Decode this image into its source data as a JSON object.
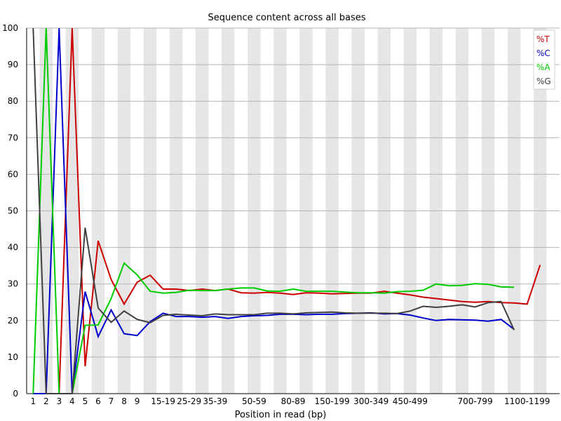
{
  "chart_data": {
    "type": "line",
    "title": "Sequence content across all bases",
    "xlabel": "Position in read (bp)",
    "ylabel": "",
    "ylim": [
      0,
      100
    ],
    "yticks": [
      0,
      10,
      20,
      30,
      40,
      50,
      60,
      70,
      80,
      90,
      100
    ],
    "grid": true,
    "legend_position": "top-right",
    "categories": [
      "1",
      "2",
      "3",
      "4",
      "5",
      "6",
      "7",
      "8",
      "9",
      "10-14",
      "15-19",
      "20-24",
      "25-29",
      "30-34",
      "35-39",
      "40-44",
      "45-49",
      "50-59",
      "60-69",
      "70-79",
      "80-89",
      "90-99",
      "100-149",
      "150-199",
      "200-249",
      "250-299",
      "300-349",
      "350-399",
      "400-449",
      "450-499",
      "500-549",
      "550-599",
      "600-649",
      "650-699",
      "700-799",
      "800-899",
      "900-999",
      "1000-1099",
      "1100-1199",
      "1200-1299",
      "1300-1399"
    ],
    "x_tick_labels": [
      "1",
      "2",
      "3",
      "4",
      "5",
      "6",
      "7",
      "8",
      "9",
      "15-19",
      "25-29",
      "35-39",
      "50-59",
      "80-89",
      "150-199",
      "300-349",
      "450-499",
      "700-799",
      "1100-1199"
    ],
    "series": [
      {
        "name": "%T",
        "color": "#cc0000",
        "values": [
          0,
          0,
          0,
          100,
          7.5,
          41.8,
          31.2,
          24.5,
          30.5,
          32.4,
          28.6,
          28.6,
          28.2,
          28.6,
          28.2,
          28.6,
          27.6,
          27.5,
          27.7,
          27.5,
          27.1,
          27.6,
          27.5,
          27.3,
          27.4,
          27.5,
          27.5,
          28.0,
          27.5,
          27.0,
          26.4,
          26.0,
          25.6,
          25.2,
          25.0,
          25.2,
          24.9,
          24.8,
          24.5,
          35.2,
          null
        ]
      },
      {
        "name": "%C",
        "color": "#0000cc",
        "values": [
          0,
          0,
          100,
          0,
          27.9,
          15.6,
          22.9,
          16.4,
          15.9,
          19.7,
          22.0,
          21.1,
          21.1,
          20.9,
          21.1,
          20.6,
          21.1,
          21.3,
          21.4,
          21.7,
          21.7,
          21.6,
          21.7,
          21.7,
          21.9,
          22.0,
          22.1,
          21.8,
          21.9,
          21.5,
          20.7,
          20.0,
          20.3,
          20.2,
          20.1,
          19.8,
          20.3,
          17.6,
          null,
          null,
          null
        ]
      },
      {
        "name": "%A",
        "color": "#00cc00",
        "values": [
          0,
          100,
          0,
          0,
          18.7,
          18.8,
          26.0,
          35.7,
          32.5,
          28.0,
          27.5,
          27.7,
          28.3,
          28.2,
          28.2,
          28.6,
          28.9,
          28.9,
          28.1,
          28.0,
          28.6,
          28.0,
          28.0,
          28.0,
          27.8,
          27.6,
          27.6,
          27.5,
          27.9,
          28.0,
          28.3,
          30.0,
          29.5,
          29.6,
          30.1,
          29.9,
          29.2,
          29.1,
          null,
          null,
          null
        ]
      },
      {
        "name": "%G",
        "color": "#404040",
        "values": [
          100,
          0,
          0,
          0,
          45.4,
          23.4,
          19.5,
          22.6,
          20.3,
          19.4,
          21.4,
          21.7,
          21.5,
          21.3,
          21.8,
          21.6,
          21.6,
          21.6,
          22.0,
          22.0,
          21.8,
          22.1,
          22.2,
          22.3,
          22.1,
          22.0,
          22.0,
          22.0,
          21.9,
          22.6,
          23.9,
          23.6,
          23.9,
          24.3,
          23.7,
          24.9,
          25.2,
          17.4,
          null,
          null,
          null
        ]
      }
    ]
  },
  "legend": {
    "entries": [
      {
        "label": "%T",
        "color": "#cc0000"
      },
      {
        "label": "%C",
        "color": "#0000cc"
      },
      {
        "label": "%A",
        "color": "#00cc00"
      },
      {
        "label": "%G",
        "color": "#404040"
      }
    ]
  },
  "colors": {
    "band_light": "#ffffff",
    "band_dark": "#e6e6e6",
    "gridline": "#b4b4b4",
    "axis": "#000000"
  }
}
